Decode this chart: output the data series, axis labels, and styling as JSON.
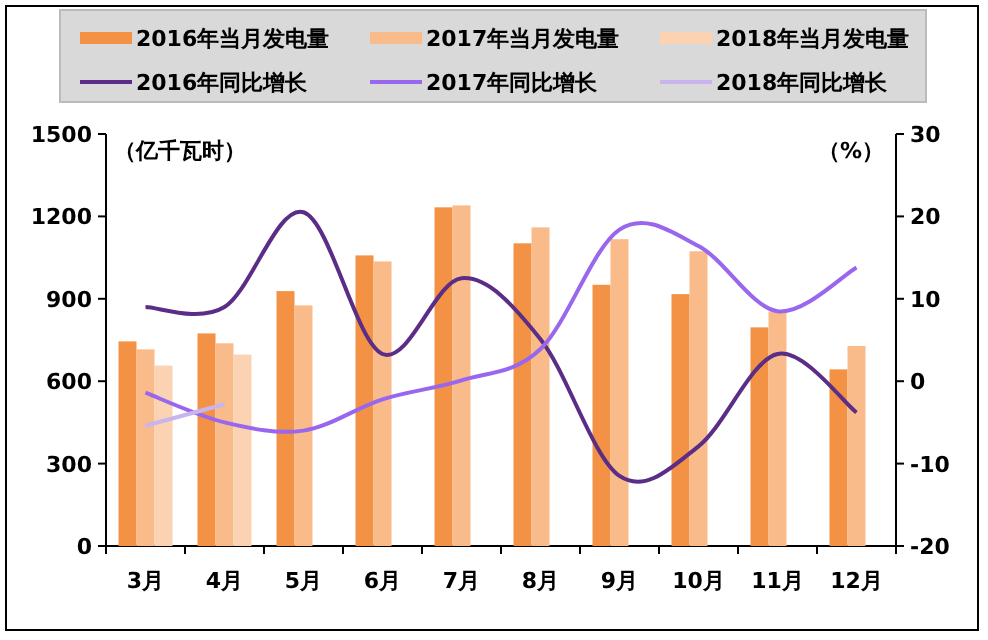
{
  "chart_data": {
    "type": "bar",
    "categories": [
      "3月",
      "4月",
      "5月",
      "6月",
      "7月",
      "8月",
      "9月",
      "10月",
      "11月",
      "12月"
    ],
    "ylabel": "（亿千瓦时）",
    "y2label": "（%）",
    "ylim": [
      0,
      1500
    ],
    "yticks": [
      0,
      300,
      600,
      900,
      1200,
      1500
    ],
    "y2lim": [
      -20,
      30
    ],
    "y2ticks": [
      -20,
      -10,
      0,
      10,
      20,
      30
    ],
    "grid": false,
    "legend": "top",
    "series": [
      {
        "name": "2016年当月发电量",
        "color": "#f39244",
        "values": [
          745,
          774,
          928,
          1058,
          1233,
          1102,
          951,
          917,
          796,
          643
        ]
      },
      {
        "name": "2017年当月发电量",
        "color": "#f9bb8a",
        "values": [
          716,
          738,
          876,
          1036,
          1240,
          1160,
          1117,
          1073,
          854,
          728
        ]
      },
      {
        "name": "2018年当月发电量",
        "color": "#fcd3b2",
        "values": [
          657,
          697,
          null,
          null,
          null,
          null,
          null,
          null,
          null,
          null
        ]
      },
      {
        "name": "2016年同比增长",
        "type": "line",
        "axis": "y2",
        "color": "#5b2d86",
        "values": [
          9.0,
          9.0,
          20.5,
          3.3,
          12.5,
          5.1,
          -11.5,
          -7.9,
          3.3,
          -3.8
        ]
      },
      {
        "name": "2017年同比增长",
        "type": "line",
        "axis": "y2",
        "color": "#9966ee",
        "values": [
          -1.4,
          -5,
          -6,
          -2.2,
          0.1,
          3.9,
          18.4,
          16.4,
          8.5,
          13.8
        ]
      },
      {
        "name": "2018年同比增长",
        "type": "line",
        "axis": "y2",
        "color": "#c9b4ee",
        "values": [
          -5.4,
          -2.8,
          null,
          null,
          null,
          null,
          null,
          null,
          null,
          null
        ]
      }
    ]
  }
}
